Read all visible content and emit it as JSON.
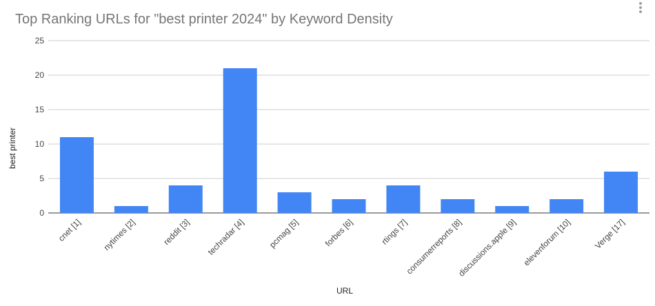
{
  "chart_data": {
    "type": "bar",
    "title": "Top Ranking URLs for \"best printer 2024\" by Keyword Density",
    "xlabel": "URL",
    "ylabel": "best printer",
    "categories": [
      "cnet [1]",
      "nytimes [2]",
      "reddit [3]",
      "techradar [4]",
      "pcmag [5]",
      "forbes [6]",
      "rtings [7]",
      "consumerreports [8]",
      "discussions.apple [9]",
      "elevenforum [10]",
      "Verge [17]"
    ],
    "values": [
      11,
      1,
      4,
      21,
      3,
      2,
      4,
      2,
      1,
      2,
      6
    ],
    "ylim": [
      0,
      25
    ],
    "yticks": [
      0,
      5,
      10,
      15,
      20,
      25
    ],
    "grid": true,
    "legend": "none",
    "bar_color": "#4285F4",
    "grid_color": "#cccccc"
  }
}
